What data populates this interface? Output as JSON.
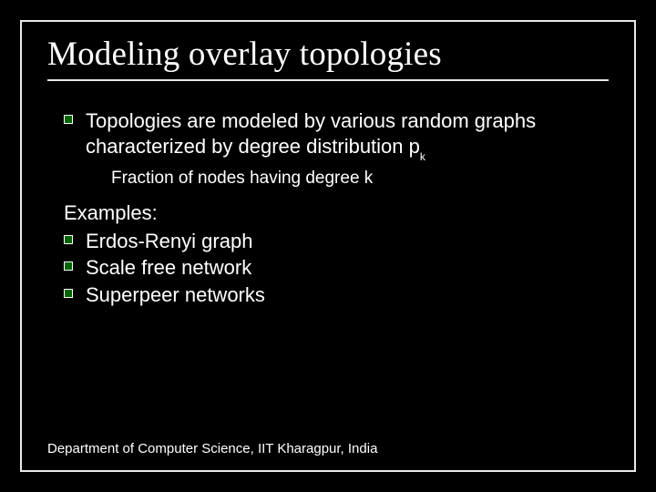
{
  "slide": {
    "title": "Modeling overlay topologies",
    "background_color": "#000000",
    "border_color": "#e8e8e8",
    "title_font": "Times New Roman",
    "title_fontsize": 37,
    "body_fontsize": 22,
    "bullet_fill": "#006600",
    "bullet_border": "#ffffff",
    "main_bullet": {
      "text_prefix": "Topologies are modeled by various random graphs characterized by degree distribution p",
      "subscript": "k",
      "sub_note": "Fraction of nodes having degree k"
    },
    "examples": {
      "label": "Examples:",
      "items": [
        "Erdos-Renyi graph",
        "Scale free network",
        "Superpeer networks"
      ]
    },
    "footer": "Department of Computer Science, IIT Kharagpur, India"
  }
}
